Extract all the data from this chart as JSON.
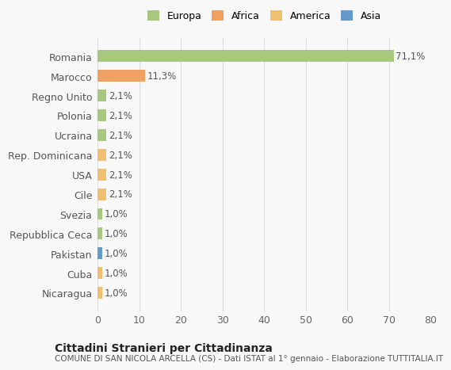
{
  "categories": [
    "Nicaragua",
    "Cuba",
    "Pakistan",
    "Repubblica Ceca",
    "Svezia",
    "Cile",
    "USA",
    "Rep. Dominicana",
    "Ucraina",
    "Polonia",
    "Regno Unito",
    "Marocco",
    "Romania"
  ],
  "values": [
    1.0,
    1.0,
    1.0,
    1.0,
    1.0,
    2.1,
    2.1,
    2.1,
    2.1,
    2.1,
    2.1,
    11.3,
    71.1
  ],
  "labels": [
    "1,0%",
    "1,0%",
    "1,0%",
    "1,0%",
    "1,0%",
    "2,1%",
    "2,1%",
    "2,1%",
    "2,1%",
    "2,1%",
    "2,1%",
    "11,3%",
    "71,1%"
  ],
  "colors": [
    "#f0c070",
    "#f0c070",
    "#6699cc",
    "#a8c880",
    "#a8c880",
    "#f0c070",
    "#f0c070",
    "#f0c070",
    "#a8c880",
    "#a8c880",
    "#a8c880",
    "#f0a060",
    "#a8c880"
  ],
  "continent": [
    "America",
    "America",
    "Asia",
    "Europa",
    "Europa",
    "America",
    "America",
    "America",
    "Europa",
    "Europa",
    "Europa",
    "Africa",
    "Europa"
  ],
  "legend_labels": [
    "Europa",
    "Africa",
    "America",
    "Asia"
  ],
  "legend_colors": [
    "#a8c880",
    "#f0a060",
    "#f0c070",
    "#6699cc"
  ],
  "title_bold": "Cittadini Stranieri per Cittadinanza",
  "title_sub": "COMUNE DI SAN NICOLA ARCELLA (CS) - Dati ISTAT al 1° gennaio - Elaborazione TUTTITALIA.IT",
  "xlim": [
    0,
    80
  ],
  "xticks": [
    0,
    10,
    20,
    30,
    40,
    50,
    60,
    70,
    80
  ],
  "bg_color": "#f8f8f8",
  "grid_color": "#dddddd"
}
